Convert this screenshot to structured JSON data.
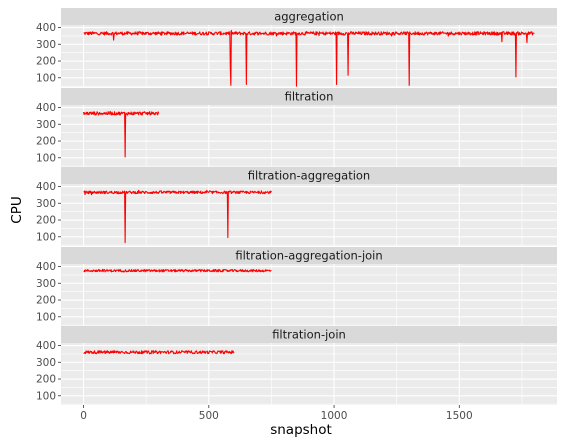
{
  "chart_data": {
    "type": "line",
    "facet": "vertical, shared x axis",
    "xlabel": "snapshot",
    "ylabel": "CPU",
    "xlim": [
      -90,
      1890
    ],
    "ylim": [
      45,
      415
    ],
    "x_ticks": [
      0,
      500,
      1000,
      1500
    ],
    "y_ticks": [
      100,
      200,
      300,
      400
    ],
    "grid": true,
    "line_color": "#ff0000",
    "panel_background": "#ebebeb",
    "strip_background": "#d9d9d9",
    "panels": [
      {
        "name": "aggregation",
        "x_range": [
          0,
          1800
        ],
        "baseline": 365,
        "noise": 10,
        "dips": [
          {
            "x": 120,
            "y": 325
          },
          {
            "x": 585,
            "y": 150
          },
          {
            "x": 588,
            "y": 55
          },
          {
            "x": 650,
            "y": 60
          },
          {
            "x": 850,
            "y": 50
          },
          {
            "x": 1010,
            "y": 60
          },
          {
            "x": 1055,
            "y": 115
          },
          {
            "x": 1300,
            "y": 55
          },
          {
            "x": 1670,
            "y": 315
          },
          {
            "x": 1725,
            "y": 105
          },
          {
            "x": 1770,
            "y": 310
          }
        ]
      },
      {
        "name": "filtration",
        "x_range": [
          0,
          300
        ],
        "baseline": 365,
        "noise": 10,
        "dips": [
          {
            "x": 165,
            "y": 105
          }
        ]
      },
      {
        "name": "filtration-aggregation",
        "x_range": [
          0,
          750
        ],
        "baseline": 365,
        "noise": 8,
        "dips": [
          {
            "x": 165,
            "y": 65
          },
          {
            "x": 575,
            "y": 95
          }
        ]
      },
      {
        "name": "filtration-aggregation-join",
        "x_range": [
          0,
          750
        ],
        "baseline": 375,
        "noise": 7,
        "dips": []
      },
      {
        "name": "filtration-join",
        "x_range": [
          0,
          600
        ],
        "baseline": 360,
        "noise": 9,
        "dips": []
      }
    ]
  }
}
